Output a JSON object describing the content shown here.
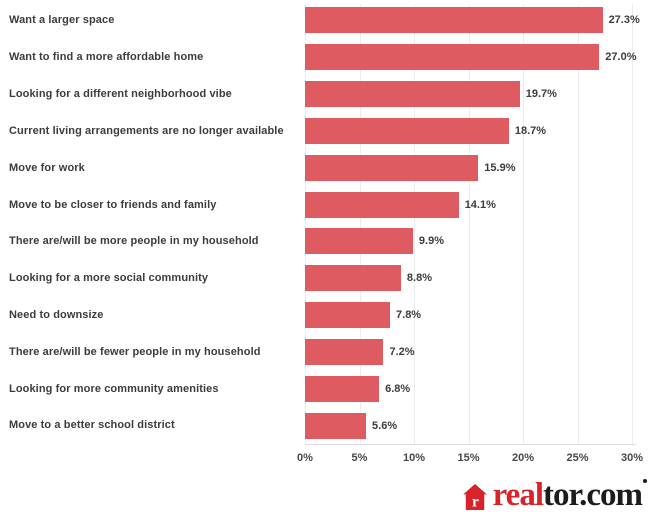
{
  "chart_data": {
    "type": "bar",
    "orientation": "horizontal",
    "title": "",
    "xlabel": "",
    "ylabel": "",
    "categories": [
      "Want a larger space",
      "Want to find a more affordable home",
      "Looking for a different neighborhood vibe",
      "Current living arrangements are no longer available",
      "Move for work",
      "Move to be closer to friends and family",
      "There are/will be more people in my household",
      "Looking for a more social community",
      "Need to downsize",
      "There are/will be fewer people in my household",
      "Looking for more community amenities",
      "Move to a better school district"
    ],
    "values": [
      27.3,
      27.0,
      19.7,
      18.7,
      15.9,
      14.1,
      9.9,
      8.8,
      7.8,
      7.2,
      6.8,
      5.6
    ],
    "value_labels": [
      "27.3%",
      "27.0%",
      "19.7%",
      "18.7%",
      "15.9%",
      "14.1%",
      "9.9%",
      "8.8%",
      "7.8%",
      "7.2%",
      "6.8%",
      "5.6%"
    ],
    "x_ticks": [
      "0%",
      "5%",
      "10%",
      "15%",
      "20%",
      "25%",
      "30%"
    ],
    "xlim": [
      0,
      30
    ],
    "grid": "vertical-light",
    "legend_position": "none",
    "bar_color": "#de5b61",
    "gridline_color": "#ececec",
    "label_color": "#3c3c3c"
  },
  "logo": {
    "icon": "house-r-icon",
    "red_text": "real",
    "dark_text": "tor.com",
    "mark": "registered-dot",
    "brand_red": "#d8232a",
    "brand_dark": "#1c1c1c"
  }
}
